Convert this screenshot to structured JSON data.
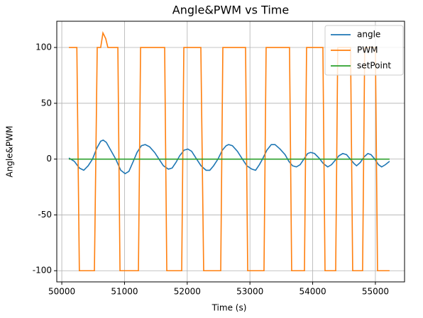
{
  "chart_data": {
    "type": "line",
    "title": "Angle&PWM vs Time",
    "x_label": "Time (s)",
    "y_label": "Angle&PWM",
    "xlim": [
      49920,
      55465
    ],
    "ylim": [
      -110,
      123.5
    ],
    "xticks": [
      50000,
      51000,
      52000,
      53000,
      54000,
      55000
    ],
    "yticks": [
      -100,
      -50,
      0,
      50,
      100
    ],
    "grid": true,
    "legend": "upper right",
    "series": [
      {
        "name": "angle",
        "color": "#1f77b4",
        "x": [
          50113,
          50200,
          50280,
          50350,
          50420,
          50490,
          50560,
          50620,
          50660,
          50710,
          50780,
          50860,
          50940,
          51010,
          51070,
          51140,
          51200,
          51270,
          51330,
          51400,
          51480,
          51550,
          51620,
          51700,
          51760,
          51820,
          51880,
          51950,
          52010,
          52070,
          52150,
          52220,
          52300,
          52360,
          52420,
          52490,
          52560,
          52620,
          52660,
          52720,
          52800,
          52880,
          52950,
          53030,
          53090,
          53150,
          53200,
          53270,
          53340,
          53400,
          53480,
          53560,
          53620,
          53680,
          53740,
          53800,
          53860,
          53920,
          53970,
          54030,
          54100,
          54170,
          54240,
          54300,
          54360,
          54420,
          54480,
          54540,
          54600,
          54660,
          54700,
          54760,
          54820,
          54880,
          54930,
          54990,
          55050,
          55100,
          55160,
          55226
        ],
        "values": [
          1,
          -2,
          -8,
          -10,
          -6,
          0,
          10,
          16,
          17,
          15,
          8,
          0,
          -10,
          -13,
          -11,
          -2,
          6,
          12,
          13,
          11,
          6,
          0,
          -6,
          -9,
          -8,
          -3,
          3,
          8,
          9,
          7,
          0,
          -6,
          -10,
          -10,
          -6,
          0,
          8,
          12,
          13,
          12,
          7,
          0,
          -6,
          -9,
          -10,
          -5,
          0,
          8,
          13,
          13,
          9,
          4,
          -2,
          -6,
          -7,
          -5,
          0,
          5,
          6,
          5,
          1,
          -4,
          -7,
          -5,
          -1,
          3,
          5,
          4,
          0,
          -4,
          -6,
          -3,
          2,
          5,
          4,
          0,
          -5,
          -7,
          -5,
          -2
        ]
      },
      {
        "name": "PWM",
        "color": "#ff7f0e",
        "x": [
          50113,
          50240,
          50280,
          50520,
          50565,
          50620,
          50656,
          50700,
          50735,
          50894,
          50928,
          51222,
          51256,
          51640,
          51674,
          51912,
          51946,
          52217,
          52262,
          52534,
          52568,
          52930,
          52964,
          53224,
          53258,
          53631,
          53665,
          53869,
          53903,
          54163,
          54197,
          54367,
          54400,
          54604,
          54638,
          54796,
          54830,
          55000,
          55034,
          55226
        ],
        "values": [
          100,
          100,
          -100,
          -100,
          100,
          100,
          113,
          108,
          100,
          100,
          -100,
          -100,
          100,
          100,
          -100,
          -100,
          100,
          100,
          -100,
          -100,
          100,
          100,
          -100,
          -100,
          100,
          100,
          -100,
          -100,
          100,
          100,
          -100,
          -100,
          100,
          100,
          -100,
          -100,
          100,
          100,
          -100,
          -100
        ]
      },
      {
        "name": "setPoint",
        "color": "#2ca02c",
        "x": [
          50113,
          55226
        ],
        "values": [
          0,
          0
        ]
      }
    ]
  }
}
